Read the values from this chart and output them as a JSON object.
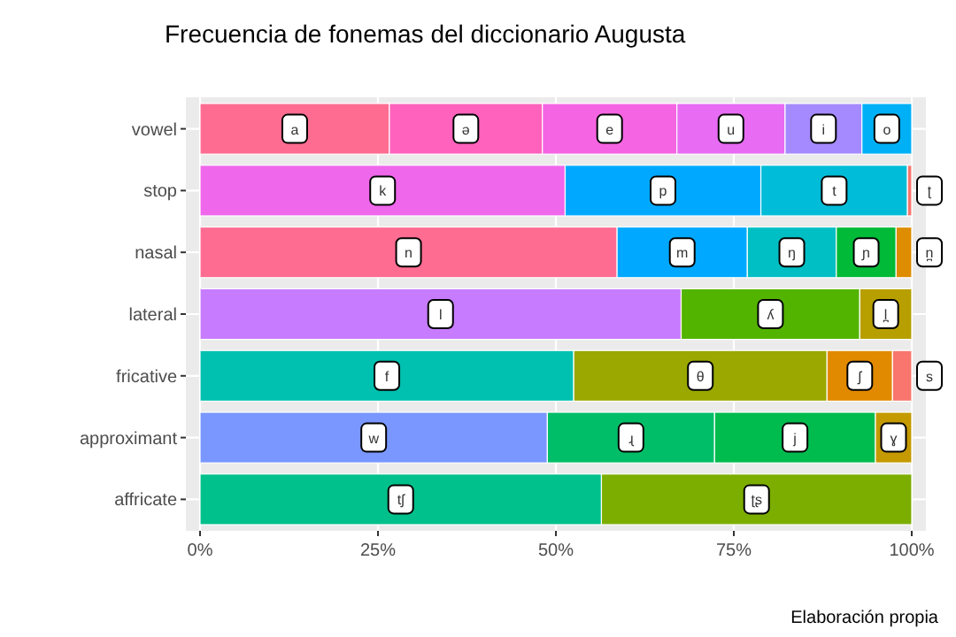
{
  "chart_data": {
    "type": "bar",
    "orientation": "horizontal",
    "stacked": true,
    "title": "Frecuencia de fonemas del diccionario Augusta",
    "categories": [
      "vowel",
      "stop",
      "nasal",
      "lateral",
      "fricative",
      "approximant",
      "affricate"
    ],
    "xlim": [
      0,
      100
    ],
    "xticks": [
      {
        "value": 0,
        "label": "0%"
      },
      {
        "value": 25,
        "label": "25%"
      },
      {
        "value": 50,
        "label": "50%"
      },
      {
        "value": 75,
        "label": "75%"
      },
      {
        "value": 100,
        "label": "100%"
      }
    ],
    "grid": true,
    "annotations": [
      "Elaboración propia"
    ],
    "series": [
      {
        "name": "a",
        "color": "#ff6c91",
        "values": [
          26.6,
          null,
          null,
          null,
          null,
          null,
          null
        ]
      },
      {
        "name": "ə",
        "color": "#ff62bc",
        "values": [
          21.5,
          null,
          null,
          null,
          null,
          null,
          null
        ]
      },
      {
        "name": "e",
        "color": "#f564e3",
        "values": [
          18.9,
          null,
          null,
          null,
          null,
          null,
          null
        ]
      },
      {
        "name": "u",
        "color": "#e76bf3",
        "values": [
          15.2,
          null,
          null,
          null,
          null,
          null,
          null
        ]
      },
      {
        "name": "i",
        "color": "#a58aff",
        "values": [
          10.8,
          null,
          null,
          null,
          null,
          null,
          null
        ]
      },
      {
        "name": "o",
        "color": "#00b0f6",
        "values": [
          7.0,
          null,
          null,
          null,
          null,
          null,
          null
        ]
      },
      {
        "name": "k",
        "color": "#ef67eb",
        "values": [
          null,
          51.3,
          null,
          null,
          null,
          null,
          null
        ]
      },
      {
        "name": "p",
        "color": "#00a9ff",
        "values": [
          null,
          27.5,
          null,
          null,
          null,
          null,
          null
        ]
      },
      {
        "name": "t",
        "color": "#00bcd8",
        "values": [
          null,
          20.6,
          null,
          null,
          null,
          null,
          null
        ]
      },
      {
        "name": "ʈ",
        "color": "#f8766d",
        "values": [
          null,
          0.6,
          null,
          null,
          null,
          null,
          null
        ]
      },
      {
        "name": "n",
        "color": "#ff6c91",
        "values": [
          null,
          null,
          58.6,
          null,
          null,
          null,
          null
        ]
      },
      {
        "name": "m",
        "color": "#00a9ff",
        "values": [
          null,
          null,
          18.3,
          null,
          null,
          null,
          null
        ]
      },
      {
        "name": "ŋ",
        "color": "#00bfc4",
        "values": [
          null,
          null,
          12.5,
          null,
          null,
          null,
          null
        ]
      },
      {
        "name": "ɲ",
        "color": "#00ba38",
        "values": [
          null,
          null,
          8.4,
          null,
          null,
          null,
          null
        ]
      },
      {
        "name": "n̪",
        "color": "#de8c00",
        "values": [
          null,
          null,
          2.2,
          null,
          null,
          null,
          null
        ]
      },
      {
        "name": "l",
        "color": "#c77cff",
        "values": [
          null,
          null,
          null,
          67.6,
          null,
          null,
          null
        ]
      },
      {
        "name": "ʎ",
        "color": "#53b400",
        "values": [
          null,
          null,
          null,
          25.1,
          null,
          null,
          null
        ]
      },
      {
        "name": "l̪",
        "color": "#b79f00",
        "values": [
          null,
          null,
          null,
          7.3,
          null,
          null,
          null
        ]
      },
      {
        "name": "f",
        "color": "#00c0af",
        "values": [
          null,
          null,
          null,
          null,
          52.5,
          null,
          null
        ]
      },
      {
        "name": "θ",
        "color": "#9aa800",
        "values": [
          null,
          null,
          null,
          null,
          35.6,
          null,
          null
        ]
      },
      {
        "name": "ʃ",
        "color": "#e18a00",
        "values": [
          null,
          null,
          null,
          null,
          9.2,
          null,
          null
        ]
      },
      {
        "name": "s",
        "color": "#f8766d",
        "values": [
          null,
          null,
          null,
          null,
          2.7,
          null,
          null
        ]
      },
      {
        "name": "w",
        "color": "#7997ff",
        "values": [
          null,
          null,
          null,
          null,
          null,
          48.8,
          null
        ]
      },
      {
        "name": "ɻ",
        "color": "#00be67",
        "values": [
          null,
          null,
          null,
          null,
          null,
          23.5,
          null
        ]
      },
      {
        "name": "j",
        "color": "#00bb4e",
        "values": [
          null,
          null,
          null,
          null,
          null,
          22.6,
          null
        ]
      },
      {
        "name": "ɣ",
        "color": "#c49a00",
        "values": [
          null,
          null,
          null,
          null,
          null,
          5.1,
          null
        ]
      },
      {
        "name": "tʃ",
        "color": "#00c08b",
        "values": [
          null,
          null,
          null,
          null,
          null,
          null,
          56.4
        ]
      },
      {
        "name": "ʈʂ",
        "color": "#7cae00",
        "values": [
          null,
          null,
          null,
          null,
          null,
          null,
          43.6
        ]
      }
    ]
  }
}
